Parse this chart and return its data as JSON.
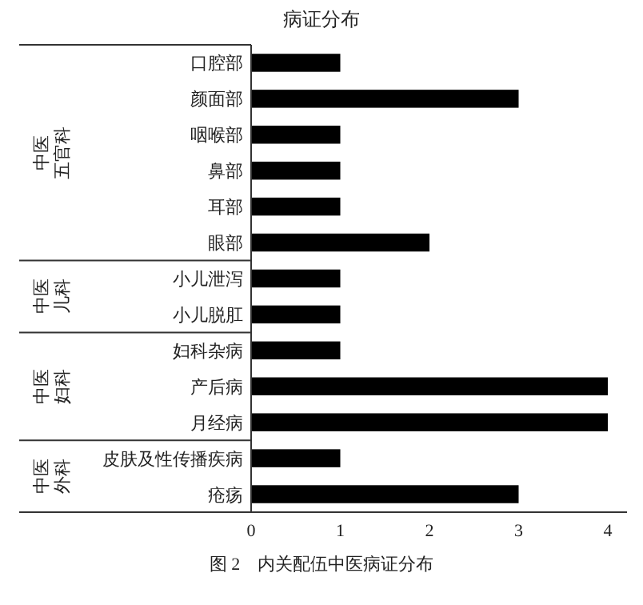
{
  "chart_data": {
    "type": "bar",
    "orientation": "horizontal",
    "title": "病证分布",
    "categories": [
      "口腔部",
      "颜面部",
      "咽喉部",
      "鼻部",
      "耳部",
      "眼部",
      "小儿泄泻",
      "小儿脱肛",
      "妇科杂病",
      "产后病",
      "月经病",
      "皮肤及性传播疾病",
      "疮疡"
    ],
    "values": [
      1,
      3,
      1,
      1,
      1,
      2,
      1,
      1,
      1,
      4,
      4,
      1,
      3
    ],
    "color": "#000000",
    "xlim": [
      0,
      4
    ],
    "xticks": [
      0,
      1,
      2,
      3,
      4
    ],
    "annotations": [
      "中医五官科",
      "中医儿科",
      "中医妇科",
      "中医外科",
      "图 2　内关配伍中医病证分布"
    ]
  }
}
